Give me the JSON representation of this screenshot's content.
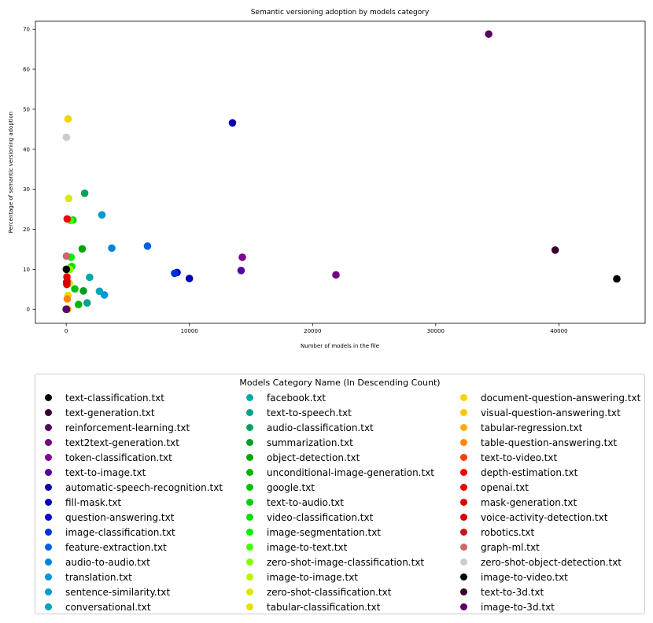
{
  "chart_data": {
    "type": "scatter",
    "title": "Semantic versioning adoption by models category",
    "xlabel": "Number of models in the file",
    "ylabel": "Percentage of semantic versioning adoption",
    "xlim": [
      -2500,
      47000
    ],
    "ylim": [
      -3.5,
      72
    ],
    "xticks": [
      0,
      10000,
      20000,
      30000,
      40000
    ],
    "yticks": [
      0,
      10,
      20,
      30,
      40,
      50,
      60,
      70
    ],
    "legend_title": "Models Category Name (In Descending Count)",
    "legend_position": "below",
    "series": [
      {
        "name": "text-classification.txt",
        "color": "#000000",
        "x": 44700,
        "y": 7.6
      },
      {
        "name": "text-generation.txt",
        "color": "#35002f",
        "x": 39700,
        "y": 14.8
      },
      {
        "name": "reinforcement-learning.txt",
        "color": "#5a0062",
        "x": 34300,
        "y": 68.8
      },
      {
        "name": "text2text-generation.txt",
        "color": "#760081",
        "x": 21900,
        "y": 8.6
      },
      {
        "name": "token-classification.txt",
        "color": "#810092",
        "x": 14300,
        "y": 13.0
      },
      {
        "name": "text-to-image.txt",
        "color": "#5600a0",
        "x": 14200,
        "y": 9.7
      },
      {
        "name": "automatic-speech-recognition.txt",
        "color": "#0f00a8",
        "x": 13500,
        "y": 46.6
      },
      {
        "name": "fill-mask.txt",
        "color": "#0000b6",
        "x": 10000,
        "y": 7.7
      },
      {
        "name": "question-answering.txt",
        "color": "#0000d0",
        "x": 9000,
        "y": 9.2
      },
      {
        "name": "image-classification.txt",
        "color": "#0032dc",
        "x": 8800,
        "y": 9.0
      },
      {
        "name": "feature-extraction.txt",
        "color": "#0062dd",
        "x": 6600,
        "y": 15.8
      },
      {
        "name": "audio-to-audio.txt",
        "color": "#0081dd",
        "x": 3700,
        "y": 15.3
      },
      {
        "name": "translation.txt",
        "color": "#0094dd",
        "x": 3100,
        "y": 3.6
      },
      {
        "name": "sentence-similarity.txt",
        "color": "#009bcc",
        "x": 2900,
        "y": 23.6
      },
      {
        "name": "conversational.txt",
        "color": "#00a3b9",
        "x": 2700,
        "y": 4.5
      },
      {
        "name": "facebook.txt",
        "color": "#00a8a5",
        "x": 1900,
        "y": 8.0
      },
      {
        "name": "text-to-speech.txt",
        "color": "#00a18e",
        "x": 1700,
        "y": 1.6
      },
      {
        "name": "audio-classification.txt",
        "color": "#00a15e",
        "x": 1500,
        "y": 29.0
      },
      {
        "name": "summarization.txt",
        "color": "#009c26",
        "x": 1400,
        "y": 4.6
      },
      {
        "name": "object-detection.txt",
        "color": "#00a500",
        "x": 1300,
        "y": 15.1
      },
      {
        "name": "unconditional-image-generation.txt",
        "color": "#00b400",
        "x": 1000,
        "y": 1.2
      },
      {
        "name": "google.txt",
        "color": "#00c200",
        "x": 700,
        "y": 5.1
      },
      {
        "name": "text-to-audio.txt",
        "color": "#00d000",
        "x": 550,
        "y": 22.3
      },
      {
        "name": "video-classification.txt",
        "color": "#00e000",
        "x": 450,
        "y": 10.7
      },
      {
        "name": "image-segmentation.txt",
        "color": "#00f000",
        "x": 400,
        "y": 13.0
      },
      {
        "name": "image-to-text.txt",
        "color": "#3cff00",
        "x": 350,
        "y": 22.2
      },
      {
        "name": "zero-shot-image-classification.txt",
        "color": "#80ff00",
        "x": 300,
        "y": 10.0
      },
      {
        "name": "image-to-image.txt",
        "color": "#b8f500",
        "x": 250,
        "y": 6.5
      },
      {
        "name": "zero-shot-classification.txt",
        "color": "#d7ea00",
        "x": 200,
        "y": 27.7
      },
      {
        "name": "tabular-classification.txt",
        "color": "#eadf00",
        "x": 150,
        "y": 3.5
      },
      {
        "name": "document-question-answering.txt",
        "color": "#f6d200",
        "x": 150,
        "y": 47.6
      },
      {
        "name": "visual-question-answering.txt",
        "color": "#ffc400",
        "x": 120,
        "y": 0.0
      },
      {
        "name": "tabular-regression.txt",
        "color": "#ffab00",
        "x": 100,
        "y": 0.0
      },
      {
        "name": "table-question-answering.txt",
        "color": "#ff8500",
        "x": 90,
        "y": 2.6
      },
      {
        "name": "text-to-video.txt",
        "color": "#ff3c00",
        "x": 80,
        "y": 7.0
      },
      {
        "name": "depth-estimation.txt",
        "color": "#f00000",
        "x": 80,
        "y": 22.6
      },
      {
        "name": "openai.txt",
        "color": "#e80000",
        "x": 60,
        "y": 8.1
      },
      {
        "name": "mask-generation.txt",
        "color": "#dd0000",
        "x": 50,
        "y": 6.2
      },
      {
        "name": "voice-activity-detection.txt",
        "color": "#d20000",
        "x": 40,
        "y": 6.8
      },
      {
        "name": "robotics.txt",
        "color": "#c81414",
        "x": 30,
        "y": 0.0
      },
      {
        "name": "graph-ml.txt",
        "color": "#cc6868",
        "x": 20,
        "y": 13.3
      },
      {
        "name": "zero-shot-object-detection.txt",
        "color": "#cccccc",
        "x": 15,
        "y": 43.0
      },
      {
        "name": "image-to-video.txt",
        "color": "#000000",
        "x": 10,
        "y": 10.0
      },
      {
        "name": "text-to-3d.txt",
        "color": "#35002f",
        "x": 5,
        "y": 0.0
      },
      {
        "name": "image-to-3d.txt",
        "color": "#5a0062",
        "x": 3,
        "y": 0.0
      }
    ]
  }
}
